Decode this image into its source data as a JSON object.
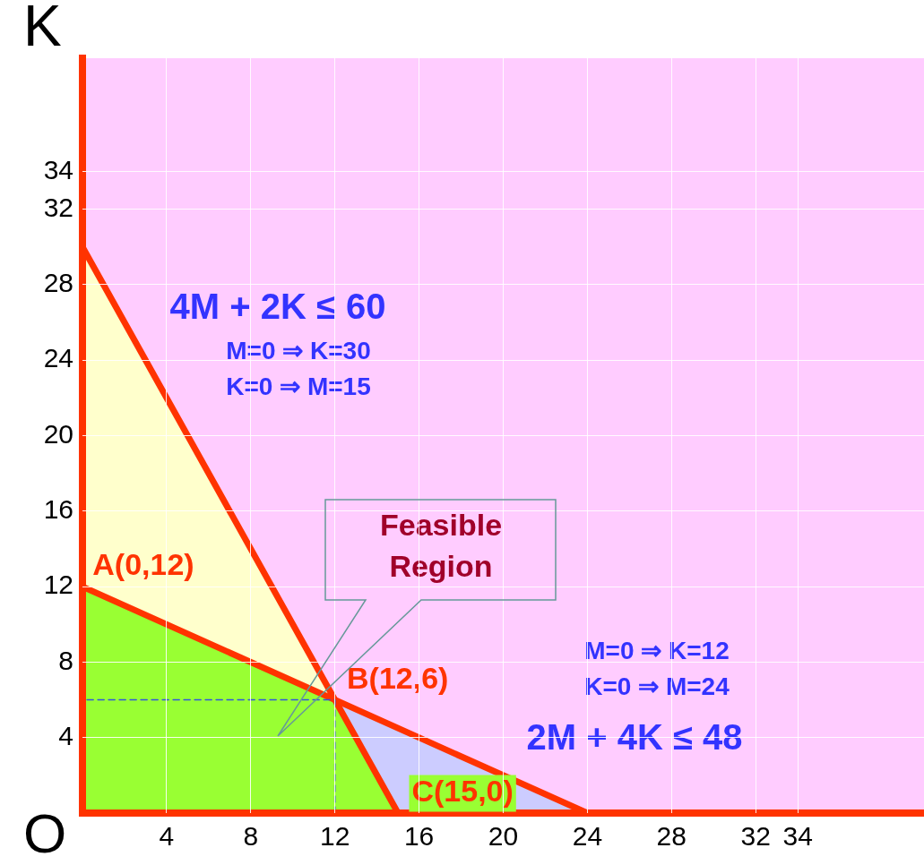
{
  "chart_data": {
    "type": "area",
    "ylabel": "K",
    "xlim": [
      0,
      40
    ],
    "ylim": [
      0,
      40
    ],
    "xticks": [
      4,
      8,
      12,
      16,
      20,
      24,
      28,
      32,
      34
    ],
    "yticks": [
      4,
      8,
      12,
      16,
      20,
      24,
      28,
      32,
      34
    ],
    "grid": true,
    "legend": false,
    "marker": "none",
    "series": [
      {
        "color": "#ffffcc",
        "x": [
          0,
          12
        ],
        "values": [
          30,
          6
        ]
      },
      {
        "color": "#ccccff",
        "x": [
          12,
          24
        ],
        "values": [
          6,
          0
        ]
      },
      {
        "color": "#99ff33",
        "x": [
          0,
          12,
          15
        ],
        "values": [
          12,
          6,
          0
        ]
      },
      {
        "type": "line",
        "color": "#ff3300",
        "x": [
          0,
          15
        ],
        "values": [
          30,
          0
        ]
      },
      {
        "type": "line",
        "color": "#ff3300",
        "x": [
          0,
          24
        ],
        "values": [
          12,
          0
        ]
      },
      {
        "type": "line",
        "color": "#3355dd",
        "line_style": "dashed",
        "x": [
          12,
          12,
          0
        ],
        "values": [
          0,
          6,
          6
        ]
      }
    ],
    "annotations": [
      "4M + 2K ≤ 60",
      "M=0 ⇒ K=30",
      "K=0 ⇒ M=15",
      "Feasible Region",
      {
        "text": "A(0,12)",
        "x": 0,
        "y": 12
      },
      {
        "text": "B(12,6)",
        "x": 12,
        "y": 6
      },
      {
        "text": "C(15,0)",
        "x": 15,
        "y": 0
      },
      "M=0 ⇒ K=12",
      "K=0 ⇒ M=24",
      "2M + 4K ≤ 48",
      "O"
    ]
  }
}
